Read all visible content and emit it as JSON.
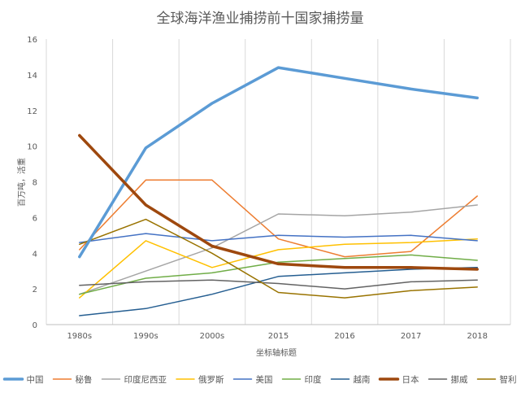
{
  "chart_data": {
    "type": "line",
    "title": "全球海洋渔业捕捞前十国家捕捞量",
    "xlabel": "坐标轴标题",
    "ylabel": "百万吨，活重",
    "categories": [
      "1980s",
      "1990s",
      "2000s",
      "2015",
      "2016",
      "2017",
      "2018"
    ],
    "ylim": [
      0,
      16
    ],
    "yticks": [
      0,
      2,
      4,
      6,
      8,
      10,
      12,
      14,
      16
    ],
    "grid": "vertical",
    "legend_position": "bottom",
    "series": [
      {
        "name": "中国",
        "color": "#5b9bd5",
        "bold": true,
        "values": [
          3.8,
          9.9,
          12.4,
          14.4,
          13.8,
          13.2,
          12.7
        ]
      },
      {
        "name": "秘鲁",
        "color": "#ed7d31",
        "bold": false,
        "values": [
          4.2,
          8.1,
          8.1,
          4.8,
          3.8,
          4.1,
          7.2
        ]
      },
      {
        "name": "印度尼西亚",
        "color": "#a5a5a5",
        "bold": false,
        "values": [
          1.7,
          3.0,
          4.3,
          6.2,
          6.1,
          6.3,
          6.7
        ]
      },
      {
        "name": "俄罗斯",
        "color": "#ffc000",
        "bold": false,
        "values": [
          1.5,
          4.7,
          3.2,
          4.2,
          4.5,
          4.6,
          4.8
        ]
      },
      {
        "name": "美国",
        "color": "#4472c4",
        "bold": false,
        "values": [
          4.6,
          5.1,
          4.7,
          5.0,
          4.9,
          5.0,
          4.7
        ]
      },
      {
        "name": "印度",
        "color": "#70ad47",
        "bold": false,
        "values": [
          1.7,
          2.6,
          2.9,
          3.5,
          3.7,
          3.9,
          3.6
        ]
      },
      {
        "name": "越南",
        "color": "#255e91",
        "bold": false,
        "values": [
          0.5,
          0.9,
          1.7,
          2.7,
          2.9,
          3.1,
          3.2
        ]
      },
      {
        "name": "日本",
        "color": "#9e480e",
        "bold": true,
        "values": [
          10.6,
          6.7,
          4.4,
          3.4,
          3.2,
          3.2,
          3.1
        ]
      },
      {
        "name": "挪威",
        "color": "#636363",
        "bold": false,
        "values": [
          2.2,
          2.4,
          2.5,
          2.3,
          2.0,
          2.4,
          2.5
        ]
      },
      {
        "name": "智利",
        "color": "#997300",
        "bold": false,
        "values": [
          4.5,
          5.9,
          4.0,
          1.8,
          1.5,
          1.9,
          2.1
        ]
      }
    ]
  }
}
